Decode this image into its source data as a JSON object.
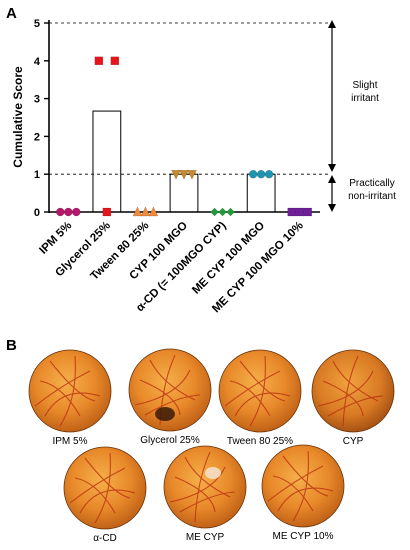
{
  "panel_a_label": "A",
  "panel_b_label": "B",
  "chart_data": {
    "type": "bar",
    "ylabel": "Cumulative Score",
    "xlabel": "",
    "ylim": [
      0,
      5
    ],
    "yticks": [
      "0",
      "1",
      "2",
      "3",
      "4",
      "5"
    ],
    "reference_lines": [
      1,
      5
    ],
    "categories": [
      "IPM 5%",
      "Glycerol  25%",
      "Tween 80  25%",
      "CYP 100 MGO",
      "α-CD (= 100MGO CYP)",
      "ME CYP 100 MGO",
      "ME CYP 100 MGO  10%"
    ],
    "bar_means": [
      0,
      2.67,
      0,
      1,
      0,
      1,
      0
    ],
    "points": [
      [
        0,
        0,
        0
      ],
      [
        4,
        0,
        4
      ],
      [
        0,
        0,
        0
      ],
      [
        1,
        1,
        1
      ],
      [
        0,
        0,
        0
      ],
      [
        1,
        1,
        1
      ],
      [
        0,
        0,
        0
      ]
    ],
    "marker_colors": [
      "#b5176b",
      "#e8141c",
      "#f08a3c",
      "#c8892e",
      "#1f9a3b",
      "#1e94b0",
      "#6e1f96"
    ],
    "marker_shapes": [
      "circle",
      "square",
      "triangle-up",
      "triangle-down",
      "diamond",
      "circle",
      "square"
    ],
    "annotations": [
      {
        "text_lines": [
          "Slight",
          "irritant"
        ],
        "range": [
          1,
          5
        ]
      },
      {
        "text_lines": [
          "Practically",
          "non-irritant"
        ],
        "range": [
          0,
          1
        ]
      }
    ]
  },
  "photos": [
    {
      "caption": "IPM 5%"
    },
    {
      "caption": "Glycerol 25%"
    },
    {
      "caption": "Tween 80 25%"
    },
    {
      "caption": "CYP"
    },
    {
      "caption": "α-CD"
    },
    {
      "caption": "ME CYP"
    },
    {
      "caption": "ME CYP 10%"
    }
  ]
}
